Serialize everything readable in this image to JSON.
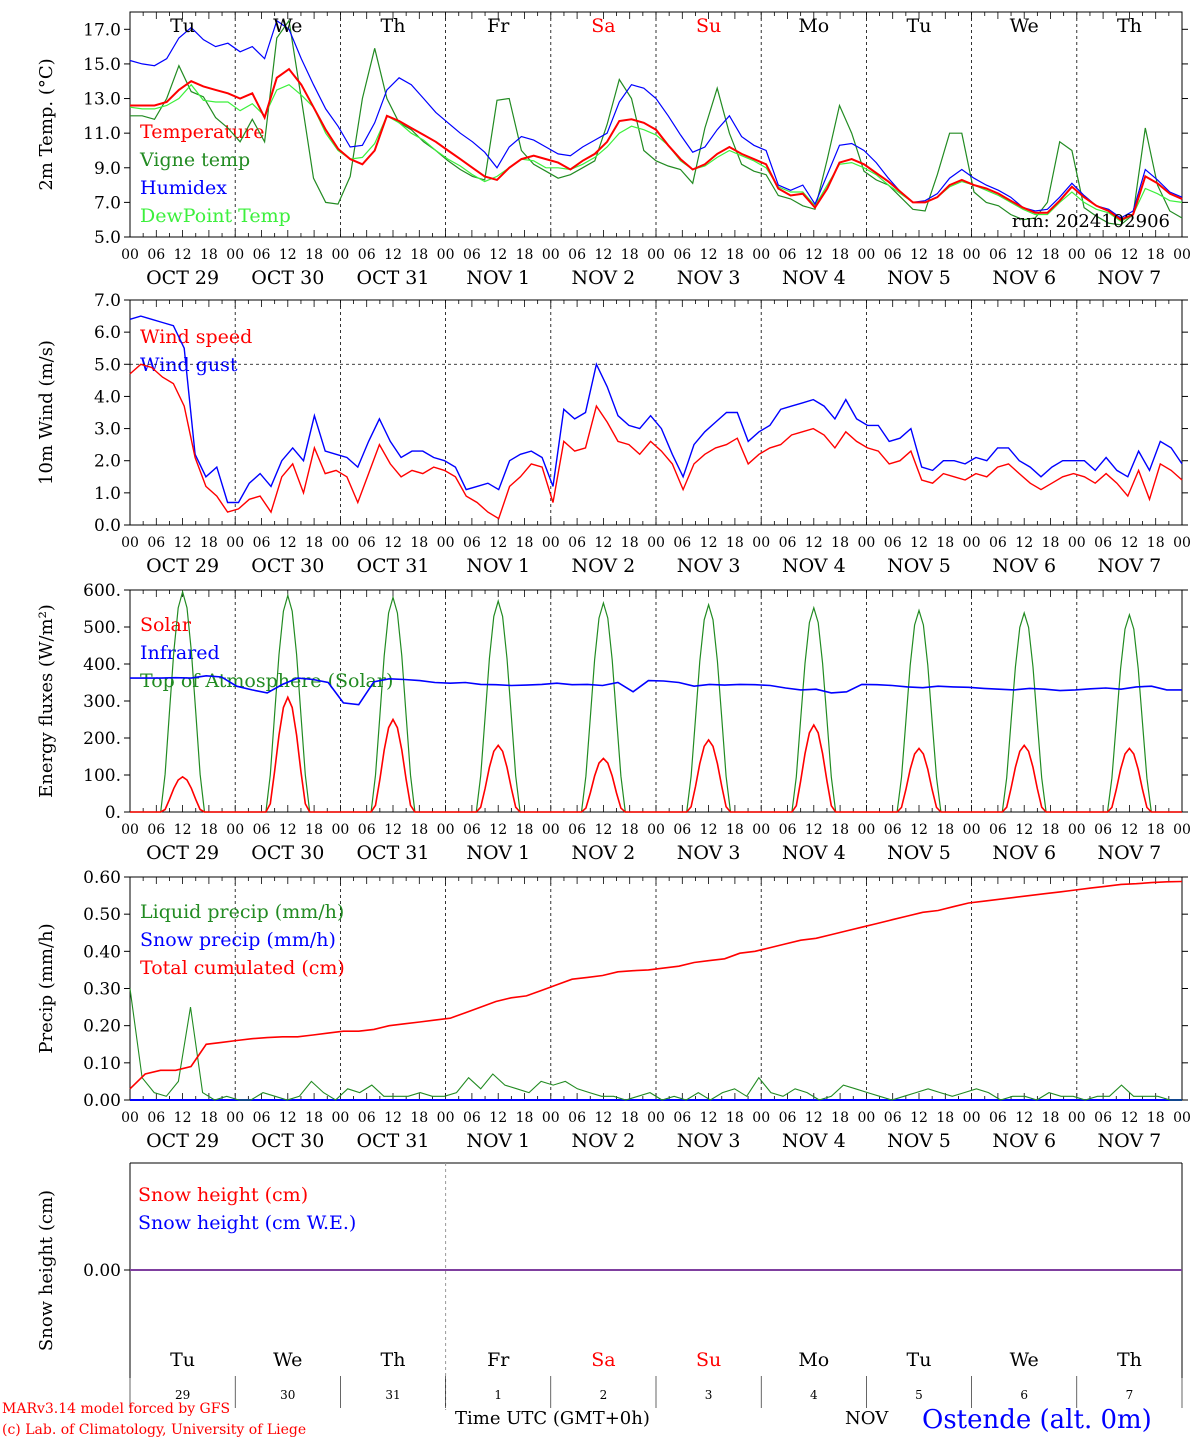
{
  "meta": {
    "run_label": "run: 2024102906",
    "credit_line1": "MARv3.14 model forced by GFS",
    "credit_line2": "(c) Lab. of Climatology, University of Liege",
    "xaxis_title": "Time UTC (GMT+0h)",
    "month_label": "NOV",
    "station": "Ostende (alt. 0m)"
  },
  "days": {
    "weekday": [
      "Tu",
      "We",
      "Th",
      "Fr",
      "Sa",
      "Su",
      "Mo",
      "Tu",
      "We",
      "Th"
    ],
    "weekday_color": [
      "#000000",
      "#000000",
      "#000000",
      "#000000",
      "#ff0000",
      "#ff0000",
      "#000000",
      "#000000",
      "#000000",
      "#000000"
    ],
    "date_label": [
      "OCT 29",
      "OCT 30",
      "OCT 31",
      "NOV  1",
      "NOV  2",
      "NOV  3",
      "NOV  4",
      "NOV  5",
      "NOV  6",
      "NOV  7"
    ],
    "day_number": [
      "29",
      "30",
      "31",
      "1",
      "2",
      "3",
      "4",
      "5",
      "6",
      "7"
    ],
    "hour_ticks": [
      "00",
      "06",
      "12",
      "18"
    ],
    "end_tick": "00"
  },
  "colors": {
    "red": "#ff0000",
    "dark_green": "#228b22",
    "blue": "#0000ff",
    "light_green": "#3cf03c",
    "purple": "#7f3f9f",
    "grid": "#000000"
  },
  "chart_data": [
    {
      "type": "line",
      "ylabel": "2m Temp. (°C)",
      "ylim": [
        5.0,
        18.0
      ],
      "yticks": [
        "5.0",
        "7.0",
        "9.0",
        "11.0",
        "13.0",
        "15.0",
        "17.0"
      ],
      "hours_per_point": 3,
      "series": [
        {
          "name": "Temperature",
          "color": "#ff0000",
          "values": [
            12.6,
            12.6,
            12.6,
            12.8,
            13.5,
            14.0,
            13.7,
            13.5,
            13.3,
            13.0,
            13.3,
            11.9,
            14.2,
            14.7,
            13.8,
            12.5,
            11.2,
            10.1,
            9.5,
            9.2,
            10.0,
            12.0,
            11.7,
            11.3,
            10.9,
            10.5,
            10.0,
            9.5,
            9.0,
            8.5,
            8.3,
            9.0,
            9.5,
            9.7,
            9.5,
            9.3,
            8.9,
            9.4,
            9.8,
            10.5,
            11.7,
            11.8,
            11.6,
            11.2,
            10.3,
            9.5,
            8.9,
            9.2,
            9.8,
            10.2,
            9.8,
            9.5,
            9.2,
            7.8,
            7.4,
            7.5,
            6.7,
            7.8,
            9.3,
            9.5,
            9.2,
            8.7,
            8.2,
            7.6,
            7.0,
            7.0,
            7.3,
            8.0,
            8.3,
            8.0,
            7.8,
            7.5,
            7.1,
            6.7,
            6.4,
            6.4,
            7.1,
            7.9,
            7.3,
            6.8,
            6.5,
            6.0,
            6.3,
            8.5,
            8.1,
            7.5,
            7.2
          ]
        },
        {
          "name": "Vigne temp",
          "color": "#228b22",
          "values": [
            12.0,
            12.0,
            11.8,
            13.0,
            14.9,
            13.4,
            13.1,
            11.9,
            11.3,
            10.5,
            11.8,
            10.5,
            16.5,
            17.5,
            13.0,
            8.4,
            7.0,
            6.9,
            8.5,
            13.0,
            15.9,
            13.0,
            11.6,
            11.2,
            10.5,
            10.0,
            9.4,
            8.9,
            8.5,
            8.3,
            12.9,
            13.0,
            10.0,
            9.2,
            8.8,
            8.4,
            8.6,
            9.0,
            9.4,
            11.5,
            14.1,
            13.0,
            10.0,
            9.4,
            9.1,
            8.9,
            8.1,
            11.3,
            13.6,
            11.0,
            9.2,
            8.8,
            8.6,
            7.4,
            7.2,
            6.8,
            6.6,
            9.5,
            12.6,
            11.0,
            8.8,
            8.3,
            8.0,
            7.3,
            6.6,
            6.5,
            8.6,
            11.0,
            11.0,
            7.6,
            7.0,
            6.8,
            6.3,
            6.0,
            6.1,
            7.0,
            10.5,
            10.0,
            6.7,
            6.2,
            5.8,
            5.7,
            6.3,
            11.3,
            8.0,
            6.5,
            6.1
          ]
        },
        {
          "name": "Humidex",
          "color": "#0000ff",
          "values": [
            15.2,
            15.0,
            14.9,
            15.3,
            16.5,
            17.1,
            16.4,
            16.0,
            16.2,
            15.7,
            16.0,
            15.3,
            17.5,
            17.0,
            15.3,
            13.8,
            12.4,
            11.4,
            10.2,
            10.3,
            11.6,
            13.5,
            14.2,
            13.8,
            13.0,
            12.2,
            11.6,
            11.0,
            10.5,
            9.9,
            9.0,
            10.2,
            10.8,
            10.6,
            10.2,
            9.8,
            9.7,
            10.2,
            10.6,
            11.0,
            12.8,
            13.8,
            13.6,
            13.0,
            12.0,
            10.9,
            9.9,
            10.2,
            11.2,
            12.0,
            10.8,
            10.3,
            10.0,
            8.0,
            7.7,
            8.0,
            6.9,
            8.6,
            10.3,
            10.4,
            10.0,
            9.3,
            8.4,
            7.6,
            7.0,
            7.1,
            7.5,
            8.4,
            8.9,
            8.4,
            8.0,
            7.7,
            7.3,
            6.7,
            6.5,
            6.6,
            7.3,
            8.1,
            7.4,
            6.8,
            6.6,
            6.1,
            6.5,
            8.9,
            8.3,
            7.6,
            7.3
          ]
        },
        {
          "name": "DewPoint Temp",
          "color": "#3cf03c",
          "values": [
            12.5,
            12.4,
            12.4,
            12.6,
            13.0,
            13.8,
            12.9,
            12.8,
            12.8,
            12.3,
            12.7,
            12.0,
            13.5,
            13.8,
            13.2,
            12.5,
            11.0,
            10.0,
            9.5,
            9.6,
            10.4,
            12.0,
            11.6,
            11.0,
            10.6,
            10.0,
            9.5,
            9.1,
            8.6,
            8.2,
            8.5,
            9.0,
            9.5,
            9.4,
            9.0,
            9.0,
            8.9,
            9.2,
            9.6,
            10.2,
            11.0,
            11.4,
            11.2,
            10.9,
            10.3,
            9.4,
            8.9,
            9.1,
            9.6,
            10.0,
            9.7,
            9.4,
            9.0,
            7.9,
            7.6,
            7.6,
            6.8,
            8.0,
            9.2,
            9.3,
            9.0,
            8.6,
            8.0,
            7.5,
            7.0,
            7.0,
            7.3,
            7.9,
            8.2,
            8.0,
            7.7,
            7.4,
            7.0,
            6.6,
            6.3,
            6.3,
            7.0,
            7.6,
            7.0,
            6.6,
            6.4,
            5.9,
            6.3,
            7.8,
            7.5,
            7.1,
            7.0
          ]
        }
      ]
    },
    {
      "type": "line",
      "ylabel": "10m Wind (m/s)",
      "ylim": [
        0.0,
        7.0
      ],
      "yticks": [
        "0.0",
        "1.0",
        "2.0",
        "3.0",
        "4.0",
        "5.0",
        "6.0",
        "7.0"
      ],
      "dashed_reference": 5.0,
      "hours_per_point": 3,
      "series": [
        {
          "name": "Wind speed",
          "color": "#ff0000",
          "values": [
            4.7,
            5.0,
            4.9,
            4.6,
            4.4,
            3.7,
            2.1,
            1.2,
            0.9,
            0.4,
            0.5,
            0.8,
            0.9,
            0.4,
            1.5,
            1.9,
            1.0,
            2.4,
            1.6,
            1.7,
            1.5,
            0.7,
            1.6,
            2.5,
            1.9,
            1.5,
            1.7,
            1.6,
            1.8,
            1.7,
            1.5,
            0.9,
            0.7,
            0.4,
            0.2,
            1.2,
            1.5,
            1.9,
            1.8,
            0.7,
            2.6,
            2.3,
            2.4,
            3.7,
            3.2,
            2.6,
            2.5,
            2.2,
            2.6,
            2.3,
            1.9,
            1.1,
            1.9,
            2.2,
            2.4,
            2.5,
            2.7,
            1.9,
            2.2,
            2.4,
            2.5,
            2.8,
            2.9,
            3.0,
            2.8,
            2.4,
            2.9,
            2.6,
            2.4,
            2.3,
            1.9,
            2.0,
            2.3,
            1.4,
            1.3,
            1.6,
            1.5,
            1.4,
            1.6,
            1.5,
            1.8,
            1.9,
            1.6,
            1.3,
            1.1,
            1.3,
            1.5,
            1.6,
            1.5,
            1.3,
            1.6,
            1.3,
            0.9,
            1.7,
            0.8,
            1.9,
            1.7,
            1.4
          ]
        },
        {
          "name": "Wind gust",
          "color": "#0000ff",
          "values": [
            6.4,
            6.5,
            6.4,
            6.3,
            6.2,
            5.5,
            2.2,
            1.5,
            1.8,
            0.7,
            0.7,
            1.3,
            1.6,
            1.2,
            2.0,
            2.4,
            2.0,
            3.4,
            2.3,
            2.2,
            2.1,
            1.8,
            2.6,
            3.3,
            2.6,
            2.1,
            2.3,
            2.3,
            2.1,
            2.0,
            1.8,
            1.1,
            1.2,
            1.3,
            1.1,
            2.0,
            2.2,
            2.3,
            2.1,
            1.2,
            3.6,
            3.3,
            3.5,
            5.0,
            4.3,
            3.4,
            3.1,
            3.0,
            3.4,
            3.0,
            2.2,
            1.5,
            2.5,
            2.9,
            3.2,
            3.5,
            3.5,
            2.6,
            2.9,
            3.1,
            3.6,
            3.7,
            3.8,
            3.9,
            3.7,
            3.3,
            3.9,
            3.3,
            3.1,
            3.1,
            2.6,
            2.7,
            3.0,
            1.8,
            1.7,
            2.0,
            2.0,
            1.9,
            2.1,
            2.0,
            2.4,
            2.4,
            2.0,
            1.8,
            1.5,
            1.8,
            2.0,
            2.0,
            2.0,
            1.7,
            2.1,
            1.7,
            1.5,
            2.3,
            1.7,
            2.6,
            2.4,
            1.9
          ]
        }
      ]
    },
    {
      "type": "line",
      "ylabel": "Energy fluxes (W/m²)",
      "ylim": [
        0,
        600
      ],
      "yticks": [
        "0.",
        "100.",
        "200.",
        "300.",
        "400.",
        "500.",
        "600."
      ],
      "hours_per_point": 3,
      "series": [
        {
          "name": "Solar",
          "color": "#ff0000",
          "daily_peak": [
            95,
            310,
            250,
            180,
            145,
            195,
            235,
            172,
            180,
            172
          ]
        },
        {
          "name": "Infrared",
          "color": "#0000ff",
          "values": [
            362,
            362,
            362,
            363,
            362,
            368,
            365,
            340,
            330,
            322,
            345,
            362,
            358,
            350,
            295,
            290,
            352,
            360,
            358,
            355,
            350,
            348,
            350,
            345,
            344,
            342,
            343,
            345,
            348,
            344,
            345,
            342,
            350,
            325,
            355,
            354,
            350,
            340,
            345,
            343,
            345,
            344,
            342,
            335,
            330,
            332,
            322,
            325,
            345,
            344,
            342,
            338,
            336,
            340,
            338,
            337,
            334,
            332,
            330,
            334,
            332,
            328,
            330,
            333,
            335,
            332,
            338,
            340,
            330,
            330
          ]
        },
        {
          "name": "Top of Atmosphere (Solar)",
          "color": "#228b22",
          "daily_peak": [
            595,
            585,
            580,
            570,
            565,
            560,
            552,
            545,
            538,
            533
          ]
        }
      ]
    },
    {
      "type": "line",
      "ylabel": "Precip (mm/h)",
      "ylim": [
        0.0,
        0.6
      ],
      "yticks": [
        "0.00",
        "0.10",
        "0.20",
        "0.30",
        "0.40",
        "0.50",
        "0.60"
      ],
      "hours_per_point": 3,
      "series": [
        {
          "name": "Liquid precip (mm/h)",
          "color": "#228b22",
          "values": [
            0.3,
            0.06,
            0.02,
            0.01,
            0.05,
            0.25,
            0.02,
            0.0,
            0.01,
            0.0,
            0.0,
            0.02,
            0.01,
            0.0,
            0.01,
            0.05,
            0.02,
            0.0,
            0.03,
            0.02,
            0.04,
            0.01,
            0.01,
            0.01,
            0.02,
            0.01,
            0.01,
            0.02,
            0.06,
            0.03,
            0.07,
            0.04,
            0.03,
            0.02,
            0.05,
            0.04,
            0.05,
            0.03,
            0.02,
            0.01,
            0.01,
            0.0,
            0.01,
            0.02,
            0.0,
            0.01,
            0.0,
            0.02,
            0.0,
            0.02,
            0.03,
            0.01,
            0.06,
            0.02,
            0.01,
            0.03,
            0.02,
            0.0,
            0.01,
            0.04,
            0.03,
            0.02,
            0.01,
            0.0,
            0.01,
            0.02,
            0.03,
            0.02,
            0.01,
            0.02,
            0.03,
            0.02,
            0.0,
            0.01,
            0.01,
            0.0,
            0.02,
            0.01,
            0.01,
            0.0,
            0.01,
            0.01,
            0.04,
            0.01,
            0.01,
            0.01,
            0.0,
            0.0
          ]
        },
        {
          "name": "Snow precip (mm/h)",
          "color": "#0000ff",
          "values": [
            0
          ]
        },
        {
          "name": "Total cumulated (cm)",
          "color": "#ff0000",
          "values": [
            0.03,
            0.07,
            0.08,
            0.08,
            0.09,
            0.15,
            0.155,
            0.16,
            0.165,
            0.168,
            0.17,
            0.17,
            0.175,
            0.18,
            0.185,
            0.185,
            0.19,
            0.2,
            0.205,
            0.21,
            0.215,
            0.22,
            0.235,
            0.25,
            0.265,
            0.275,
            0.28,
            0.295,
            0.31,
            0.325,
            0.33,
            0.335,
            0.345,
            0.348,
            0.35,
            0.355,
            0.36,
            0.37,
            0.375,
            0.38,
            0.395,
            0.4,
            0.41,
            0.42,
            0.43,
            0.435,
            0.445,
            0.455,
            0.465,
            0.475,
            0.485,
            0.495,
            0.505,
            0.51,
            0.52,
            0.53,
            0.535,
            0.54,
            0.545,
            0.55,
            0.555,
            0.56,
            0.565,
            0.57,
            0.575,
            0.58,
            0.582,
            0.585,
            0.587,
            0.588
          ]
        }
      ]
    },
    {
      "type": "line",
      "ylabel": "Snow height (cm)",
      "yticks": [
        "0.00"
      ],
      "series": [
        {
          "name": "Snow height (cm)",
          "color": "#ff0000",
          "values": [
            0.0
          ]
        },
        {
          "name": "Snow height (cm W.E.)",
          "color": "#0000ff",
          "values": [
            0.0
          ]
        }
      ]
    }
  ]
}
